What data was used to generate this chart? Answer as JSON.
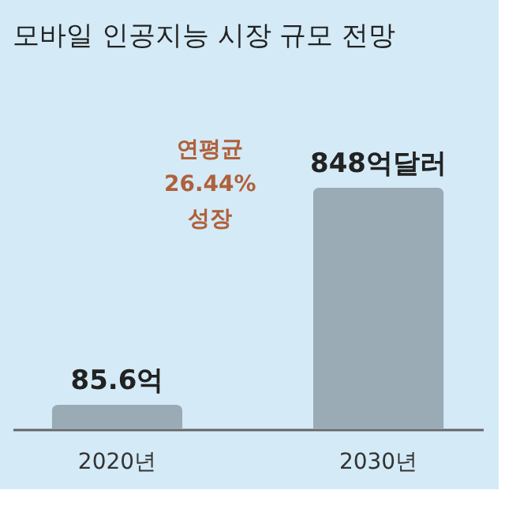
{
  "chart_data": {
    "type": "bar",
    "title": "모바일 인공지능 시장 규모 전망",
    "categories": [
      "2020년",
      "2030년"
    ],
    "values": [
      85.6,
      848
    ],
    "color": "#9aabb5",
    "value_labels": [
      "85.6억",
      "848억달러"
    ],
    "annotations": [
      "연평균\n26.44%\n성장"
    ],
    "grid": false
  }
}
